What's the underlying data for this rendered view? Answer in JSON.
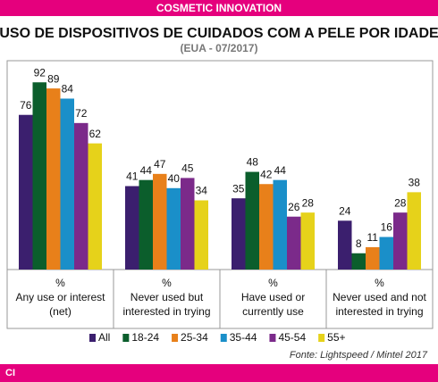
{
  "header": {
    "brand": "COSMETIC INNOVATION"
  },
  "chart_data": {
    "type": "bar",
    "title": "USO DE DISPOSITIVOS DE CUIDADOS COM A PELE POR IDADE",
    "subtitle": "(EUA - 07/2017)",
    "categories": [
      [
        "%",
        "Any use or interest",
        "(net)"
      ],
      [
        "%",
        "Never used but",
        "interested in trying"
      ],
      [
        "%",
        "Have used or",
        "currently use"
      ],
      [
        "%",
        "Never used and not",
        "interested in trying"
      ]
    ],
    "series": [
      {
        "name": "All",
        "color": "#3b1f6e",
        "values": [
          76,
          41,
          35,
          24
        ]
      },
      {
        "name": "18-24",
        "color": "#0b5e2c",
        "values": [
          92,
          44,
          48,
          8
        ]
      },
      {
        "name": "25-34",
        "color": "#e8801a",
        "values": [
          89,
          47,
          42,
          11
        ]
      },
      {
        "name": "35-44",
        "color": "#1a8fc9",
        "values": [
          84,
          40,
          44,
          16
        ]
      },
      {
        "name": "45-54",
        "color": "#7b2a8a",
        "values": [
          72,
          45,
          26,
          28
        ]
      },
      {
        "name": "55+",
        "color": "#e6d21a",
        "values": [
          62,
          34,
          28,
          38
        ]
      }
    ],
    "ylim": [
      0,
      100
    ],
    "source": "Fonte: Lightspeed / Mintel 2017"
  },
  "footer": {
    "logo": "CI"
  }
}
